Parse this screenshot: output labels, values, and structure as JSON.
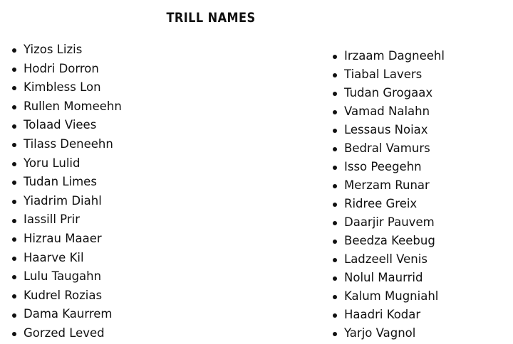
{
  "title": "TRILL NAMES",
  "left_list": [
    "Yizos Lizis",
    "Hodri Dorron",
    "Kimbless Lon",
    "Rullen Momeehn",
    "Tolaad Viees",
    "Tilass Deneehn",
    "Yoru Lulid",
    "Tudan Limes",
    "Yiadrim Diahl",
    "Iassill Prir",
    "Hizrau Maaer",
    "Haarve Kil",
    "Lulu Taugahn",
    "Kudrel Rozias",
    "Dama Kaurrem",
    "Gorzed Leved"
  ],
  "right_list": [
    "Irzaam Dagneehl",
    "Tiabal Lavers",
    "Tudan Grogaax",
    "Vamad Nalahn",
    "Lessaus Noiax",
    "Bedral Vamurs",
    "Isso Peegehn",
    "Merzam Runar",
    "Ridree Greix",
    "Daarjir Pauvem",
    "Beedza Keebug",
    "Ladzeell Venis",
    "Nolul Maurrid",
    "Kalum Mugniahl",
    "Haadri Kodar",
    "Yarjo Vagnol"
  ]
}
